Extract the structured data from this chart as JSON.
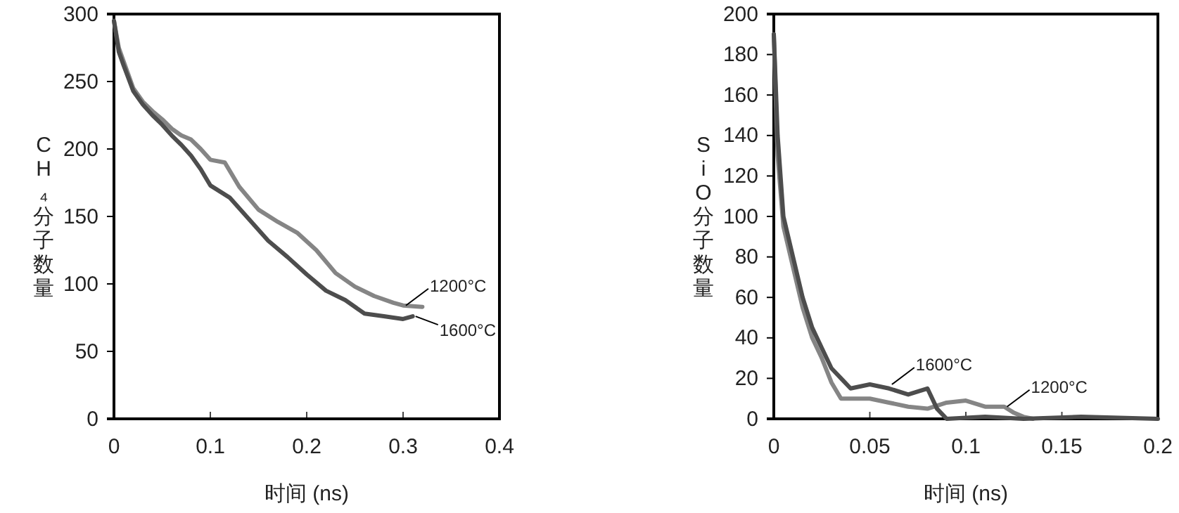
{
  "chart_data": [
    {
      "type": "line",
      "xlabel": "时间 (ns)",
      "ylabel": "CH₄分子数量",
      "xlim": [
        0,
        0.4
      ],
      "xticks": [
        0,
        0.1,
        0.2,
        0.3,
        0.4
      ],
      "ylim": [
        0,
        300
      ],
      "yticks": [
        0,
        50,
        100,
        150,
        200,
        250,
        300
      ],
      "series": [
        {
          "color": "#858585",
          "x": [
            0,
            0.005,
            0.01,
            0.02,
            0.03,
            0.04,
            0.05,
            0.06,
            0.07,
            0.08,
            0.09,
            0.1,
            0.115,
            0.13,
            0.15,
            0.17,
            0.19,
            0.21,
            0.23,
            0.25,
            0.27,
            0.29,
            0.3,
            0.32
          ],
          "values": [
            295,
            275,
            265,
            245,
            235,
            228,
            222,
            215,
            210,
            207,
            200,
            192,
            190,
            172,
            155,
            146,
            138,
            125,
            108,
            98,
            91,
            86,
            84,
            83
          ]
        },
        {
          "color": "#4d4d4d",
          "x": [
            0,
            0.005,
            0.01,
            0.02,
            0.03,
            0.04,
            0.05,
            0.06,
            0.07,
            0.08,
            0.09,
            0.1,
            0.12,
            0.14,
            0.16,
            0.18,
            0.2,
            0.22,
            0.24,
            0.26,
            0.28,
            0.3,
            0.31
          ],
          "values": [
            295,
            272,
            262,
            243,
            233,
            225,
            218,
            210,
            203,
            195,
            185,
            173,
            164,
            148,
            132,
            120,
            107,
            95,
            88,
            78,
            76,
            74,
            76
          ]
        }
      ],
      "annotations": [
        {
          "text": "1200°C",
          "x": 0.3,
          "y": 84
        },
        {
          "text": "1600°C",
          "x": 0.31,
          "y": 76
        }
      ]
    },
    {
      "type": "line",
      "xlabel": "时间 (ns)",
      "ylabel": "SiO分子数量",
      "xlim": [
        0,
        0.2
      ],
      "xticks": [
        0,
        0.05,
        0.1,
        0.15,
        0.2
      ],
      "ylim": [
        0,
        200
      ],
      "yticks": [
        0,
        20,
        40,
        60,
        80,
        100,
        120,
        140,
        160,
        180,
        200
      ],
      "series": [
        {
          "color": "#858585",
          "x": [
            0,
            0.002,
            0.005,
            0.01,
            0.015,
            0.02,
            0.025,
            0.03,
            0.035,
            0.04,
            0.05,
            0.06,
            0.07,
            0.08,
            0.09,
            0.1,
            0.11,
            0.12,
            0.125,
            0.13,
            0.135
          ],
          "values": [
            190,
            130,
            95,
            75,
            55,
            40,
            30,
            18,
            10,
            10,
            10,
            8,
            6,
            5,
            8,
            9,
            6,
            6,
            3,
            1,
            0
          ]
        },
        {
          "color": "#4d4d4d",
          "x": [
            0,
            0.002,
            0.005,
            0.01,
            0.015,
            0.02,
            0.025,
            0.03,
            0.035,
            0.04,
            0.05,
            0.06,
            0.07,
            0.08,
            0.085,
            0.09,
            0.11,
            0.13,
            0.16,
            0.2
          ],
          "values": [
            190,
            140,
            100,
            80,
            60,
            45,
            35,
            25,
            20,
            15,
            17,
            15,
            12,
            15,
            5,
            0,
            1,
            0,
            1,
            0
          ]
        }
      ],
      "annotations": [
        {
          "text": "1600°C",
          "x": 0.06,
          "y": 17
        },
        {
          "text": "1200°C",
          "x": 0.12,
          "y": 6
        }
      ]
    }
  ]
}
